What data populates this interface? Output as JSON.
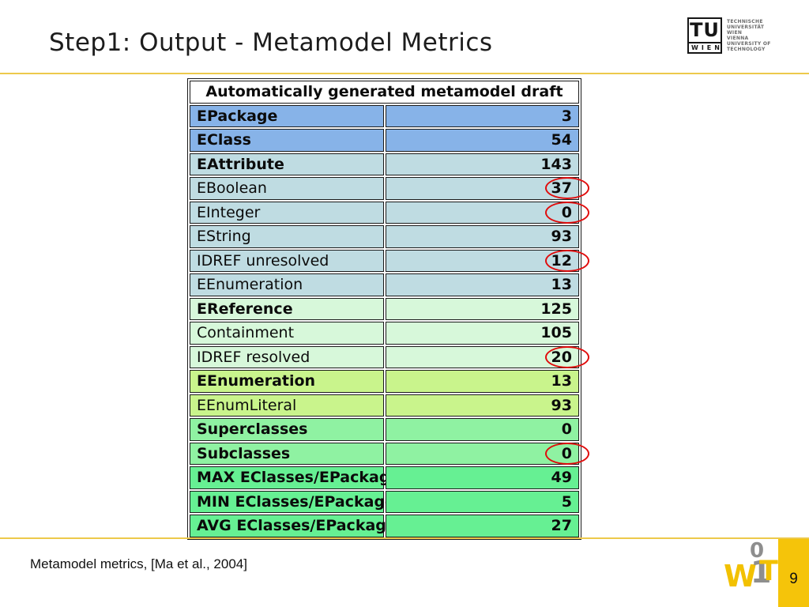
{
  "slide": {
    "title": "Step1: Output - Metamodel Metrics",
    "footer_caption": "Metamodel metrics, [Ma et al., 2004]",
    "page_number": "9",
    "accent_gold": "#edc94b",
    "annotation_red": "#e00c0c"
  },
  "tu_logo": {
    "box_top": "TU",
    "box_bottom": "WIEN",
    "german_name": "TECHNISCHE\nUNIVERSITÄT\nWIEN",
    "english_name": "VIENNA\nUNIVERSITY OF\nTECHNOLOGY"
  },
  "wit_logo": {
    "w": "W",
    "zero": "0",
    "one": "1",
    "t": "T"
  },
  "table": {
    "header": "Automatically generated metamodel draft",
    "row_group_colors": {
      "blue": "#87b3e8",
      "pale_cyan": "#bfdce2",
      "pale_mint": "#d7f8da",
      "yellow_green": "#c9f48c",
      "light_green": "#8ff2a2",
      "spring_green": "#66f093"
    },
    "rows": [
      {
        "label": "EPackage",
        "value": "3",
        "circled": false
      },
      {
        "label": "EClass",
        "value": "54",
        "circled": false
      },
      {
        "label": "EAttribute",
        "value": "143",
        "circled": false
      },
      {
        "label": "EBoolean",
        "value": "37",
        "circled": true
      },
      {
        "label": "EInteger",
        "value": "0",
        "circled": true
      },
      {
        "label": "EString",
        "value": "93",
        "circled": false
      },
      {
        "label": "IDREF unresolved",
        "value": "12",
        "circled": true
      },
      {
        "label": "EEnumeration",
        "value": "13",
        "circled": false
      },
      {
        "label": "EReference",
        "value": "125",
        "circled": false
      },
      {
        "label": "Containment",
        "value": "105",
        "circled": false
      },
      {
        "label": "IDREF resolved",
        "value": "20",
        "circled": true
      },
      {
        "label": "EEnumeration",
        "value": "13",
        "circled": false
      },
      {
        "label": "EEnumLiteral",
        "value": "93",
        "circled": false
      },
      {
        "label": "Superclasses",
        "value": "0",
        "circled": false
      },
      {
        "label": "Subclasses",
        "value": "0",
        "circled": true
      },
      {
        "label": "MAX EClasses/EPackage",
        "value": "49",
        "circled": false
      },
      {
        "label": "MIN EClasses/EPackage",
        "value": "5",
        "circled": false
      },
      {
        "label": "AVG EClasses/EPackage",
        "value": "27",
        "circled": false
      }
    ]
  }
}
